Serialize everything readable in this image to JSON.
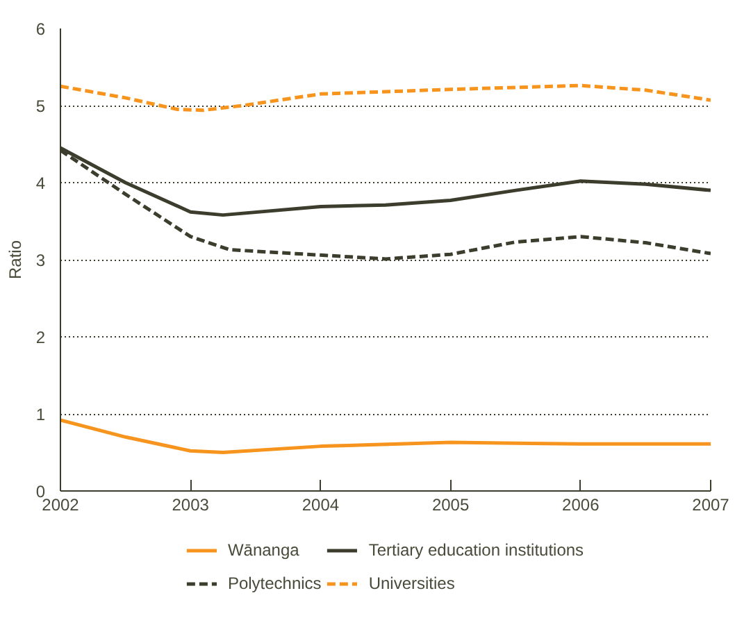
{
  "chart_data": {
    "type": "line",
    "ylabel": "Ratio",
    "xlim": [
      2002,
      2007
    ],
    "xticks": [
      2002,
      2003,
      2004,
      2005,
      2006,
      2007
    ],
    "ylim": [
      0,
      6
    ],
    "yticks": [
      0,
      1,
      2,
      3,
      4,
      5,
      6
    ],
    "grid": "y",
    "legend": "bottom",
    "series": [
      {
        "name": "Wānanga",
        "color": "#f7941d",
        "line_style": "solid",
        "x": [
          2002,
          2002.5,
          2003,
          2003.25,
          2004,
          2005,
          2006,
          2007
        ],
        "values": [
          0.92,
          0.7,
          0.52,
          0.5,
          0.58,
          0.63,
          0.61,
          0.61
        ]
      },
      {
        "name": "Polytechnics",
        "color": "#3d3d2d",
        "line_style": "dashed",
        "x": [
          2002,
          2002.5,
          2003,
          2003.3,
          2004,
          2004.5,
          2005,
          2005.5,
          2006,
          2006.5,
          2007
        ],
        "values": [
          4.42,
          3.85,
          3.3,
          3.13,
          3.06,
          3.01,
          3.07,
          3.23,
          3.3,
          3.22,
          3.08
        ]
      },
      {
        "name": "Tertiary education institutions",
        "color": "#3d3d2d",
        "line_style": "solid",
        "x": [
          2002,
          2002.5,
          2003,
          2003.25,
          2004,
          2004.5,
          2005,
          2005.5,
          2006,
          2006.5,
          2007
        ],
        "values": [
          4.45,
          4.0,
          3.62,
          3.58,
          3.69,
          3.71,
          3.77,
          3.9,
          4.02,
          3.98,
          3.9
        ]
      },
      {
        "name": "Universities",
        "color": "#f7941d",
        "line_style": "dashed",
        "x": [
          2002,
          2002.5,
          2002.9,
          2003.1,
          2003.4,
          2004,
          2005,
          2006,
          2006.5,
          2007
        ],
        "values": [
          5.25,
          5.1,
          4.95,
          4.94,
          5.0,
          5.15,
          5.21,
          5.26,
          5.2,
          5.07
        ]
      }
    ]
  }
}
